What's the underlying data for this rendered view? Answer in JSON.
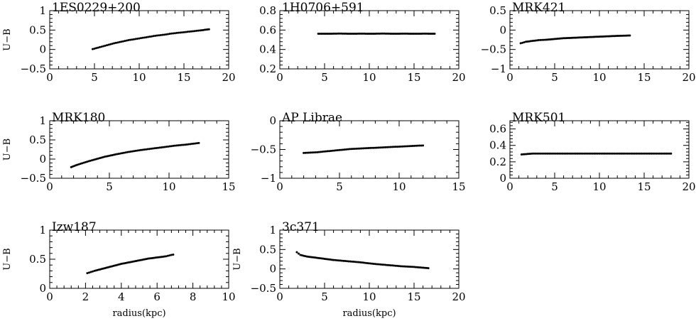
{
  "chart_data": [
    {
      "type": "scatter",
      "title": "1ES0229+200",
      "xlabel": "",
      "ylabel": "U−B",
      "xlim": [
        0,
        20
      ],
      "ylim": [
        -0.5,
        1
      ],
      "xticks": [
        "0",
        "5",
        "10",
        "15",
        "20"
      ],
      "yticks": [
        "−0.5",
        "0",
        "0.5",
        "1"
      ],
      "x": [
        4.8,
        5.6,
        6.4,
        7.2,
        8.0,
        8.8,
        9.6,
        10.4,
        11.2,
        12.0,
        12.8,
        13.6,
        14.4,
        15.2,
        16.0,
        16.8,
        17.8
      ],
      "y": [
        0.01,
        0.06,
        0.11,
        0.16,
        0.2,
        0.24,
        0.27,
        0.3,
        0.33,
        0.36,
        0.38,
        0.41,
        0.43,
        0.45,
        0.47,
        0.49,
        0.52
      ]
    },
    {
      "type": "scatter",
      "title": "1H0706+591",
      "xlabel": "",
      "ylabel": "",
      "xlim": [
        0,
        20
      ],
      "ylim": [
        0.2,
        0.8
      ],
      "xticks": [
        "0",
        "5",
        "10",
        "15",
        "20"
      ],
      "yticks": [
        "0.2",
        "0.4",
        "0.6",
        "0.8"
      ],
      "x": [
        4.3,
        5.5,
        6.7,
        7.9,
        9.1,
        10.3,
        11.5,
        12.7,
        13.9,
        15.1,
        16.3,
        17.3
      ],
      "y": [
        0.562,
        0.562,
        0.564,
        0.562,
        0.563,
        0.562,
        0.564,
        0.562,
        0.563,
        0.562,
        0.563,
        0.562
      ]
    },
    {
      "type": "scatter",
      "title": "MRK421",
      "xlabel": "",
      "ylabel": "",
      "xlim": [
        0,
        20
      ],
      "ylim": [
        -1,
        0.5
      ],
      "xticks": [
        "0",
        "5",
        "10",
        "15",
        "20"
      ],
      "yticks": [
        "−1",
        "−0.5",
        "0",
        "0.5"
      ],
      "x": [
        1.2,
        1.8,
        2.5,
        3.2,
        4.0,
        5.0,
        6.0,
        7.0,
        8.0,
        9.0,
        10.0,
        11.0,
        12.0,
        13.4
      ],
      "y": [
        -0.34,
        -0.3,
        -0.28,
        -0.26,
        -0.25,
        -0.23,
        -0.21,
        -0.2,
        -0.19,
        -0.18,
        -0.17,
        -0.16,
        -0.15,
        -0.14
      ]
    },
    {
      "type": "scatter",
      "title": "MRK180",
      "xlabel": "",
      "ylabel": "U−B",
      "xlim": [
        0,
        15
      ],
      "ylim": [
        -0.5,
        1
      ],
      "xticks": [
        "0",
        "5",
        "10",
        "15"
      ],
      "yticks": [
        "−0.5",
        "0",
        "0.5",
        "1"
      ],
      "x": [
        1.8,
        2.3,
        3.0,
        3.8,
        4.6,
        5.5,
        6.5,
        7.5,
        8.5,
        9.5,
        10.5,
        11.5,
        12.5
      ],
      "y": [
        -0.21,
        -0.15,
        -0.08,
        -0.01,
        0.06,
        0.12,
        0.18,
        0.23,
        0.27,
        0.31,
        0.35,
        0.38,
        0.42
      ]
    },
    {
      "type": "scatter",
      "title": "AP Librae",
      "xlabel": "",
      "ylabel": "",
      "xlim": [
        0,
        15
      ],
      "ylim": [
        -1,
        0
      ],
      "xticks": [
        "0",
        "5",
        "10",
        "15"
      ],
      "yticks": [
        "−1",
        "−0.5",
        "0"
      ],
      "x": [
        2.0,
        3.0,
        4.0,
        5.0,
        6.0,
        7.0,
        8.0,
        9.0,
        10.0,
        11.0,
        12.0
      ],
      "y": [
        -0.56,
        -0.55,
        -0.53,
        -0.51,
        -0.49,
        -0.48,
        -0.47,
        -0.46,
        -0.45,
        -0.44,
        -0.43
      ]
    },
    {
      "type": "scatter",
      "title": "MRK501",
      "xlabel": "",
      "ylabel": "",
      "xlim": [
        0,
        20
      ],
      "ylim": [
        0,
        0.7
      ],
      "xticks": [
        "0",
        "5",
        "10",
        "15",
        "20"
      ],
      "yticks": [
        "0",
        "0.2",
        "0.4",
        "0.6"
      ],
      "x": [
        1.3,
        2.5,
        4.0,
        5.5,
        7.0,
        8.5,
        10.0,
        11.5,
        13.0,
        14.5,
        16.0,
        17.3,
        18.0
      ],
      "y": [
        0.29,
        0.3,
        0.3,
        0.3,
        0.3,
        0.3,
        0.3,
        0.3,
        0.3,
        0.3,
        0.3,
        0.3,
        0.3
      ]
    },
    {
      "type": "scatter",
      "title": "Izw187",
      "xlabel": "radius(kpc)",
      "ylabel": "U−B",
      "xlim": [
        0,
        10
      ],
      "ylim": [
        0,
        1
      ],
      "xticks": [
        "0",
        "2",
        "4",
        "6",
        "8",
        "10"
      ],
      "yticks": [
        "0",
        "0.5",
        "1"
      ],
      "x": [
        2.1,
        2.5,
        3.0,
        3.5,
        4.0,
        4.5,
        5.0,
        5.5,
        6.0,
        6.5,
        6.9
      ],
      "y": [
        0.26,
        0.3,
        0.34,
        0.38,
        0.42,
        0.45,
        0.48,
        0.51,
        0.53,
        0.55,
        0.58
      ]
    },
    {
      "type": "scatter",
      "title": "3c371",
      "xlabel": "radius(kpc)",
      "ylabel": "U−B",
      "xlim": [
        0,
        20
      ],
      "ylim": [
        -0.5,
        1
      ],
      "xticks": [
        "0",
        "5",
        "10",
        "15",
        "20"
      ],
      "yticks": [
        "−0.5",
        "0",
        "0.5",
        "1"
      ],
      "x": [
        1.9,
        2.3,
        3.0,
        4.0,
        5.0,
        6.0,
        7.5,
        9.0,
        10.5,
        12.0,
        13.5,
        15.0,
        16.6
      ],
      "y": [
        0.43,
        0.36,
        0.32,
        0.29,
        0.26,
        0.23,
        0.2,
        0.17,
        0.13,
        0.1,
        0.07,
        0.05,
        0.02
      ]
    }
  ]
}
